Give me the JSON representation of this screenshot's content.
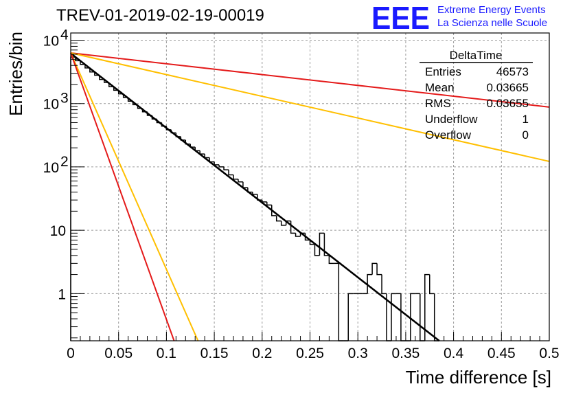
{
  "title": "TREV-01-2019-02-19-00019",
  "logo": {
    "mark": "EEE",
    "line1": "Extreme Energy Events",
    "line2": "La Scienza nelle Scuole",
    "color": "#1a1aff"
  },
  "stats_box": {
    "name": "DeltaTime",
    "rows": [
      {
        "label": "Entries",
        "value": "46573"
      },
      {
        "label": "Mean",
        "value": "0.03665"
      },
      {
        "label": "RMS",
        "value": "0.03655"
      },
      {
        "label": "Underflow",
        "value": "1"
      },
      {
        "label": "Overflow",
        "value": "0"
      }
    ]
  },
  "chart_data": {
    "type": "histogram",
    "title": "TREV-01-2019-02-19-00019",
    "xlabel": "Time difference [s]",
    "ylabel": "Entries/bin",
    "xlim": [
      0,
      0.5
    ],
    "ylim": [
      0.18,
      13000
    ],
    "yscale": "log",
    "grid": true,
    "x_ticks": [
      "0",
      "0.05",
      "0.1",
      "0.15",
      "0.2",
      "0.25",
      "0.3",
      "0.35",
      "0.4",
      "0.45",
      "0.5"
    ],
    "y_ticks": [
      {
        "value": 1,
        "label": "1"
      },
      {
        "value": 10,
        "label": "10"
      },
      {
        "value": 100,
        "label": "10",
        "exp": "2"
      },
      {
        "value": 1000,
        "label": "10",
        "exp": "3"
      },
      {
        "value": 10000,
        "label": "10",
        "exp": "4"
      }
    ],
    "bin_width": 0.005,
    "histogram": [
      {
        "x0": 0.0,
        "y": 5400
      },
      {
        "x0": 0.005,
        "y": 4750
      },
      {
        "x0": 0.01,
        "y": 4150
      },
      {
        "x0": 0.015,
        "y": 3650
      },
      {
        "x0": 0.02,
        "y": 3150
      },
      {
        "x0": 0.025,
        "y": 2800
      },
      {
        "x0": 0.03,
        "y": 2400
      },
      {
        "x0": 0.035,
        "y": 2150
      },
      {
        "x0": 0.04,
        "y": 1850
      },
      {
        "x0": 0.045,
        "y": 1620
      },
      {
        "x0": 0.05,
        "y": 1420
      },
      {
        "x0": 0.055,
        "y": 1250
      },
      {
        "x0": 0.06,
        "y": 1090
      },
      {
        "x0": 0.065,
        "y": 960
      },
      {
        "x0": 0.07,
        "y": 840
      },
      {
        "x0": 0.075,
        "y": 740
      },
      {
        "x0": 0.08,
        "y": 650
      },
      {
        "x0": 0.085,
        "y": 570
      },
      {
        "x0": 0.09,
        "y": 500
      },
      {
        "x0": 0.095,
        "y": 440
      },
      {
        "x0": 0.1,
        "y": 385
      },
      {
        "x0": 0.105,
        "y": 345
      },
      {
        "x0": 0.11,
        "y": 300
      },
      {
        "x0": 0.115,
        "y": 265
      },
      {
        "x0": 0.12,
        "y": 230
      },
      {
        "x0": 0.125,
        "y": 205
      },
      {
        "x0": 0.13,
        "y": 180
      },
      {
        "x0": 0.135,
        "y": 160
      },
      {
        "x0": 0.14,
        "y": 140
      },
      {
        "x0": 0.145,
        "y": 120
      },
      {
        "x0": 0.15,
        "y": 108
      },
      {
        "x0": 0.155,
        "y": 100
      },
      {
        "x0": 0.16,
        "y": 90
      },
      {
        "x0": 0.165,
        "y": 75
      },
      {
        "x0": 0.17,
        "y": 64
      },
      {
        "x0": 0.175,
        "y": 58
      },
      {
        "x0": 0.18,
        "y": 47
      },
      {
        "x0": 0.185,
        "y": 40
      },
      {
        "x0": 0.19,
        "y": 37
      },
      {
        "x0": 0.195,
        "y": 30
      },
      {
        "x0": 0.2,
        "y": 28
      },
      {
        "x0": 0.205,
        "y": 25
      },
      {
        "x0": 0.21,
        "y": 17
      },
      {
        "x0": 0.215,
        "y": 14
      },
      {
        "x0": 0.22,
        "y": 12
      },
      {
        "x0": 0.225,
        "y": 14
      },
      {
        "x0": 0.23,
        "y": 9
      },
      {
        "x0": 0.235,
        "y": 8
      },
      {
        "x0": 0.24,
        "y": 9
      },
      {
        "x0": 0.245,
        "y": 7
      },
      {
        "x0": 0.25,
        "y": 6
      },
      {
        "x0": 0.255,
        "y": 4
      },
      {
        "x0": 0.26,
        "y": 9
      },
      {
        "x0": 0.265,
        "y": 4
      },
      {
        "x0": 0.27,
        "y": 3
      },
      {
        "x0": 0.275,
        "y": 3
      },
      {
        "x0": 0.28,
        "y": 0
      },
      {
        "x0": 0.285,
        "y": 0
      },
      {
        "x0": 0.29,
        "y": 1
      },
      {
        "x0": 0.295,
        "y": 1
      },
      {
        "x0": 0.3,
        "y": 1
      },
      {
        "x0": 0.305,
        "y": 1
      },
      {
        "x0": 0.31,
        "y": 2
      },
      {
        "x0": 0.315,
        "y": 3
      },
      {
        "x0": 0.32,
        "y": 2
      },
      {
        "x0": 0.325,
        "y": 1
      },
      {
        "x0": 0.33,
        "y": 0
      },
      {
        "x0": 0.335,
        "y": 1
      },
      {
        "x0": 0.34,
        "y": 1
      },
      {
        "x0": 0.345,
        "y": 0
      },
      {
        "x0": 0.35,
        "y": 0
      },
      {
        "x0": 0.355,
        "y": 1
      },
      {
        "x0": 0.36,
        "y": 1
      },
      {
        "x0": 0.365,
        "y": 0
      },
      {
        "x0": 0.37,
        "y": 2
      },
      {
        "x0": 0.375,
        "y": 1
      },
      {
        "x0": 0.38,
        "y": 0
      }
    ],
    "series": [
      {
        "role": "fit",
        "color": "#000000",
        "points": [
          [
            0.0,
            6200
          ],
          [
            0.385,
            0.18
          ]
        ]
      },
      {
        "role": "upper bound",
        "color": "#e41a1a",
        "points": [
          [
            0.0,
            6300
          ],
          [
            0.5,
            880
          ]
        ]
      },
      {
        "role": "upper bound",
        "color": "#ffbf00",
        "points": [
          [
            0.0,
            6300
          ],
          [
            0.5,
            122
          ]
        ]
      },
      {
        "role": "lower bound",
        "color": "#ffbf00",
        "points": [
          [
            0.0,
            6300
          ],
          [
            0.133,
            0.18
          ]
        ]
      },
      {
        "role": "lower bound",
        "color": "#e41a1a",
        "points": [
          [
            0.0,
            6300
          ],
          [
            0.108,
            0.18
          ]
        ]
      }
    ]
  }
}
